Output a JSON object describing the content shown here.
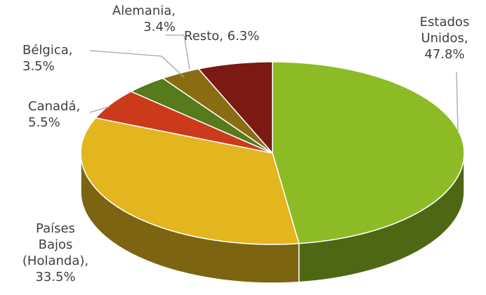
{
  "chart_data": {
    "type": "pie3d",
    "labels": [
      "Estados Unidos, 47.8%",
      "Países Bajos (Holanda), 33.5%",
      "Canadá, 5.5%",
      "Bélgica, 3.5%",
      "Alemania, 3.4%",
      "Resto, 6.3%"
    ],
    "values": [
      47.8,
      33.5,
      5.5,
      3.5,
      3.4,
      6.3
    ],
    "colors": [
      "#8dbb25",
      "#e3b51e",
      "#cc3a1c",
      "#567a1c",
      "#8a6d12",
      "#7a1a12"
    ]
  }
}
